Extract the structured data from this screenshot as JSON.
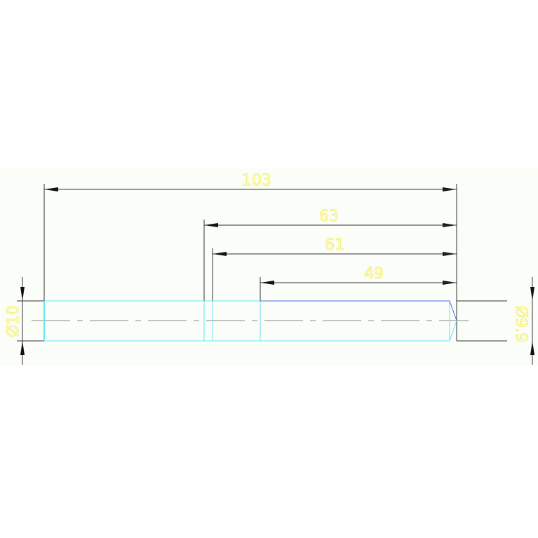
{
  "drawing": {
    "dimensions": {
      "overall_length": "103",
      "length_63": "63",
      "length_61": "61",
      "length_49": "49",
      "left_diameter": "Ø10",
      "right_diameter": "Ø9.9"
    },
    "colors": {
      "dimension_text": "#f5f06a",
      "part_outline": "#66e6f0",
      "edge_highlight": "#3f6fe0",
      "dimension_line": "#333333",
      "centerline": "#888888"
    }
  }
}
